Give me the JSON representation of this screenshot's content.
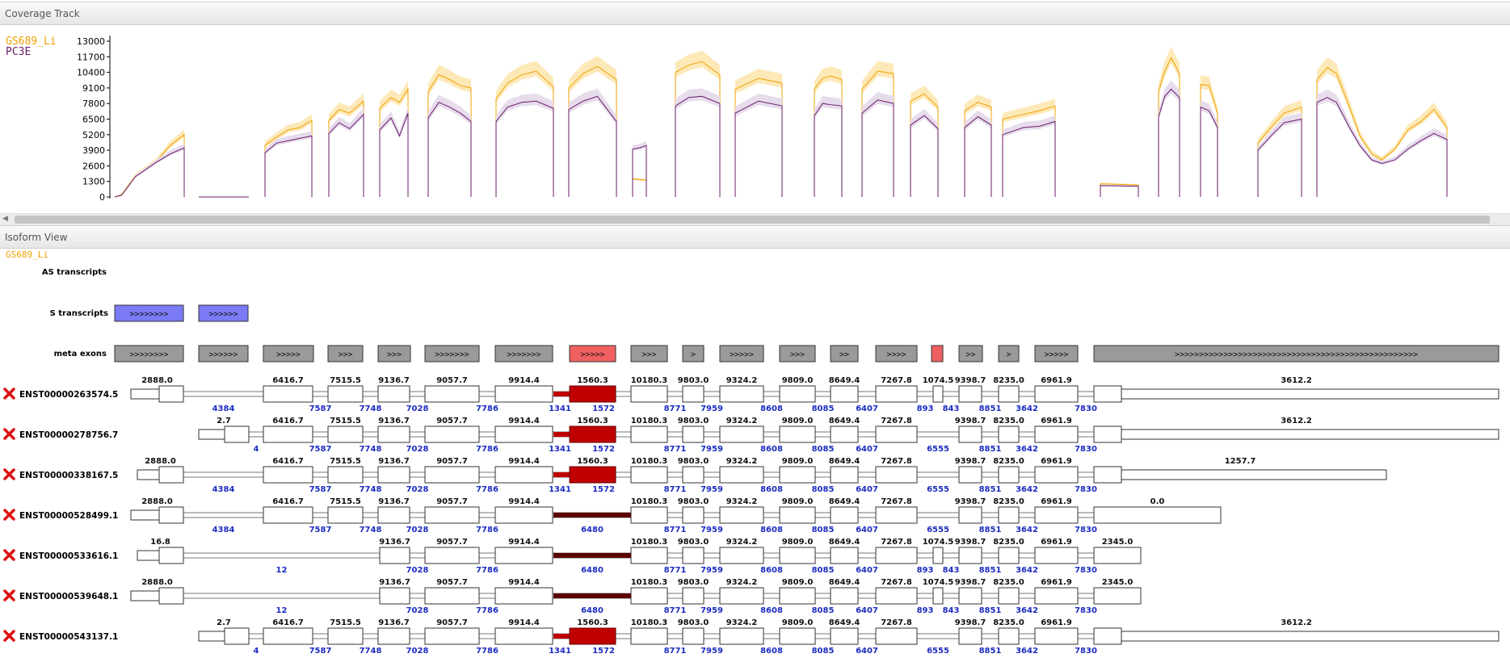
{
  "coverage_track": {
    "title": "Coverage Track",
    "legend": [
      {
        "name": "GS689_Li",
        "color": "#f0a000"
      },
      {
        "name": "PC3E",
        "color": "#6a1b6a"
      }
    ]
  },
  "isoform_view": {
    "title": "Isoform View",
    "sample_label": "GS689_Li",
    "row_labels": {
      "as": "AS transcripts",
      "s": "S transcripts",
      "meta": "meta exons"
    },
    "transcripts": [
      "ENST00000263574.5",
      "ENST00000278756.7",
      "ENST00000338167.5",
      "ENST00000528499.1",
      "ENST00000533616.1",
      "ENST00000539648.1",
      "ENST00000543137.1"
    ],
    "remove_icon": "red-x-icon"
  },
  "chart_data": {
    "type": "line",
    "title": "",
    "xlabel": "",
    "ylabel": "",
    "y_ticks": [
      0,
      1300,
      2600,
      3900,
      5200,
      6500,
      7800,
      9100,
      10400,
      11700,
      13000
    ],
    "ylim": [
      0,
      13500
    ],
    "series": [
      {
        "name": "GS689_Li",
        "color": "#f0a000",
        "band_color": "#fde9b8",
        "segments": [
          [
            [
              0,
              0
            ],
            [
              0.1,
              200
            ],
            [
              0.3,
              1800
            ],
            [
              0.6,
              3000
            ],
            [
              0.8,
              4300
            ],
            [
              1,
              5200
            ]
          ],
          [
            [
              0,
              4300
            ],
            [
              0.25,
              5000
            ],
            [
              0.5,
              5600
            ],
            [
              0.75,
              5800
            ],
            [
              1,
              6400
            ]
          ],
          [
            [
              0,
              6400
            ],
            [
              0.3,
              7300
            ],
            [
              0.6,
              7000
            ],
            [
              1,
              8000
            ]
          ],
          [
            [
              0,
              7400
            ],
            [
              0.4,
              8300
            ],
            [
              0.7,
              7900
            ],
            [
              1,
              9000
            ]
          ],
          [
            [
              0,
              8800
            ],
            [
              0.25,
              10200
            ],
            [
              0.5,
              9800
            ],
            [
              0.75,
              9300
            ],
            [
              1,
              9100
            ]
          ],
          [
            [
              0,
              8200
            ],
            [
              0.2,
              9500
            ],
            [
              0.45,
              10200
            ],
            [
              0.7,
              10500
            ],
            [
              1,
              9200
            ]
          ],
          [
            [
              0,
              9100
            ],
            [
              0.3,
              10300
            ],
            [
              0.6,
              10900
            ],
            [
              1,
              9800
            ]
          ],
          [
            [
              0,
              1500
            ],
            [
              0.5,
              1450
            ],
            [
              1,
              1400
            ]
          ],
          [
            [
              0,
              10400
            ],
            [
              0.3,
              11000
            ],
            [
              0.6,
              11300
            ],
            [
              1,
              10200
            ]
          ],
          [
            [
              0,
              9000
            ],
            [
              0.5,
              9900
            ],
            [
              1,
              9500
            ]
          ],
          [
            [
              0,
              9000
            ],
            [
              0.3,
              9900
            ],
            [
              0.6,
              10100
            ],
            [
              1,
              9800
            ]
          ],
          [
            [
              0,
              9000
            ],
            [
              0.5,
              10500
            ],
            [
              1,
              10300
            ]
          ],
          [
            [
              0,
              8000
            ],
            [
              0.5,
              8600
            ],
            [
              1,
              7500
            ]
          ],
          [
            [
              0,
              7200
            ],
            [
              0.5,
              7900
            ],
            [
              1,
              7500
            ]
          ],
          [
            [
              0,
              6500
            ],
            [
              0.4,
              6900
            ],
            [
              0.7,
              7200
            ],
            [
              1,
              7600
            ]
          ],
          [
            [
              0,
              1100
            ],
            [
              1,
              1000
            ]
          ],
          [
            [
              0,
              8800
            ],
            [
              0.3,
              10500
            ],
            [
              0.6,
              11600
            ],
            [
              1,
              10300
            ]
          ],
          [
            [
              0,
              9400
            ],
            [
              0.5,
              9300
            ],
            [
              1,
              7000
            ]
          ],
          [
            [
              0,
              4500
            ],
            [
              0.3,
              5800
            ],
            [
              0.6,
              7000
            ],
            [
              1,
              7500
            ]
          ],
          [
            [
              0,
              9800
            ],
            [
              0.08,
              10800
            ],
            [
              0.15,
              10300
            ],
            [
              0.25,
              7500
            ],
            [
              0.33,
              5100
            ],
            [
              0.42,
              3600
            ],
            [
              0.5,
              3100
            ],
            [
              0.6,
              4000
            ],
            [
              0.7,
              5600
            ],
            [
              0.8,
              6300
            ],
            [
              0.9,
              7300
            ],
            [
              1,
              5800
            ]
          ]
        ]
      },
      {
        "name": "PC3E",
        "color": "#6a1b6a",
        "band_color": "#e6dcec",
        "segments": [
          [
            [
              0,
              0
            ],
            [
              0.1,
              150
            ],
            [
              0.3,
              1700
            ],
            [
              0.6,
              2900
            ],
            [
              0.8,
              3600
            ],
            [
              1,
              4100
            ]
          ],
          [
            [
              0,
              0
            ],
            [
              1,
              0
            ]
          ],
          [
            [
              0,
              3700
            ],
            [
              0.25,
              4500
            ],
            [
              0.5,
              4700
            ],
            [
              0.75,
              4900
            ],
            [
              1,
              5100
            ]
          ],
          [
            [
              0,
              5300
            ],
            [
              0.3,
              6200
            ],
            [
              0.6,
              5700
            ],
            [
              1,
              6900
            ]
          ],
          [
            [
              0,
              5600
            ],
            [
              0.4,
              6600
            ],
            [
              0.7,
              5100
            ],
            [
              1,
              7000
            ]
          ],
          [
            [
              0,
              6600
            ],
            [
              0.25,
              7900
            ],
            [
              0.5,
              7500
            ],
            [
              0.75,
              7000
            ],
            [
              1,
              6300
            ]
          ],
          [
            [
              0,
              6300
            ],
            [
              0.2,
              7500
            ],
            [
              0.45,
              7900
            ],
            [
              0.7,
              8000
            ],
            [
              1,
              7400
            ]
          ],
          [
            [
              0,
              7300
            ],
            [
              0.3,
              8000
            ],
            [
              0.6,
              8400
            ],
            [
              1,
              6300
            ]
          ],
          [
            [
              0,
              4000
            ],
            [
              0.5,
              4100
            ],
            [
              1,
              4300
            ]
          ],
          [
            [
              0,
              7600
            ],
            [
              0.3,
              8300
            ],
            [
              0.6,
              8400
            ],
            [
              1,
              7800
            ]
          ],
          [
            [
              0,
              7000
            ],
            [
              0.5,
              8000
            ],
            [
              1,
              7600
            ]
          ],
          [
            [
              0,
              6800
            ],
            [
              0.3,
              7800
            ],
            [
              0.6,
              7700
            ],
            [
              1,
              7600
            ]
          ],
          [
            [
              0,
              7000
            ],
            [
              0.5,
              8100
            ],
            [
              1,
              7800
            ]
          ],
          [
            [
              0,
              6000
            ],
            [
              0.5,
              6800
            ],
            [
              1,
              5700
            ]
          ],
          [
            [
              0,
              5800
            ],
            [
              0.5,
              6700
            ],
            [
              1,
              6000
            ]
          ],
          [
            [
              0,
              5200
            ],
            [
              0.4,
              5800
            ],
            [
              0.7,
              5900
            ],
            [
              1,
              6300
            ]
          ],
          [
            [
              0,
              950
            ],
            [
              1,
              900
            ]
          ],
          [
            [
              0,
              6700
            ],
            [
              0.3,
              8400
            ],
            [
              0.6,
              9000
            ],
            [
              1,
              8300
            ]
          ],
          [
            [
              0,
              7500
            ],
            [
              0.5,
              7200
            ],
            [
              1,
              5800
            ]
          ],
          [
            [
              0,
              3900
            ],
            [
              0.3,
              5100
            ],
            [
              0.6,
              6200
            ],
            [
              1,
              6500
            ]
          ],
          [
            [
              0,
              7900
            ],
            [
              0.08,
              8300
            ],
            [
              0.15,
              7900
            ],
            [
              0.25,
              5800
            ],
            [
              0.33,
              4300
            ],
            [
              0.42,
              3100
            ],
            [
              0.5,
              2800
            ],
            [
              0.6,
              3100
            ],
            [
              0.7,
              4000
            ],
            [
              0.8,
              4700
            ],
            [
              0.9,
              5300
            ],
            [
              1,
              4800
            ]
          ]
        ]
      }
    ]
  },
  "exon_labels": {
    "meta_arrows": [
      ">>>>>>>>",
      ">>>>>>",
      ">>>>>",
      ">>>",
      ">>>",
      ">>>>>>>",
      ">>>>>>>",
      ">>>>>",
      ">>>",
      ">",
      ">>>>>",
      ">>>",
      ">>",
      ">>>>",
      "",
      ">>",
      ">",
      ">>>>>",
      ">>>>>>>>>>>>>>>>>>>>>>>>>>>>>>>>>>>>>>>>>>>>>>>>>>"
    ],
    "s_arrows": [
      ">>>>>>>>",
      ">>>>>>"
    ],
    "t1_up": [
      "2888.0",
      "6416.7",
      "7515.5",
      "9136.7",
      "9057.7",
      "9914.4",
      "1560.3",
      "10180.3",
      "9803.0",
      "9324.2",
      "9809.0",
      "8649.4",
      "7267.8",
      "1074.5",
      "9398.7",
      "8235.0",
      "6961.9",
      "3612.2"
    ],
    "t1_dn": [
      "4384",
      "7587",
      "7748",
      "7028",
      "7786",
      "1341",
      "1572",
      "8771",
      "7959",
      "8608",
      "8085",
      "6407",
      "893",
      "843",
      "8851",
      "3642",
      "7830"
    ],
    "t2_up": [
      "2.7",
      "6416.7",
      "7515.5",
      "9136.7",
      "9057.7",
      "9914.4",
      "1560.3",
      "10180.3",
      "9803.0",
      "9324.2",
      "9809.0",
      "8649.4",
      "7267.8",
      "9398.7",
      "8235.0",
      "6961.9",
      "3612.2"
    ],
    "t2_dn": [
      "4",
      "7587",
      "7748",
      "7028",
      "7786",
      "1341",
      "1572",
      "8771",
      "7959",
      "8608",
      "8085",
      "6407",
      "6555",
      "8851",
      "3642",
      "7830"
    ],
    "t3_up": [
      "2888.0",
      "6416.7",
      "7515.5",
      "9136.7",
      "9057.7",
      "9914.4",
      "1560.3",
      "10180.3",
      "9803.0",
      "9324.2",
      "9809.0",
      "8649.4",
      "7267.8",
      "9398.7",
      "8235.0",
      "6961.9",
      "1257.7"
    ],
    "t3_dn": [
      "4384",
      "7587",
      "7748",
      "7028",
      "7786",
      "1341",
      "1572",
      "8771",
      "7959",
      "8608",
      "8085",
      "6407",
      "6555",
      "8851",
      "3642",
      "7830"
    ],
    "t4_up": [
      "2888.0",
      "6416.7",
      "7515.5",
      "9136.7",
      "9057.7",
      "9914.4",
      "10180.3",
      "9803.0",
      "9324.2",
      "9809.0",
      "8649.4",
      "7267.8",
      "9398.7",
      "8235.0",
      "6961.9",
      "0.0"
    ],
    "t4_dn": [
      "4384",
      "7587",
      "7748",
      "7028",
      "7786",
      "6480",
      "8771",
      "7959",
      "8608",
      "8085",
      "6407",
      "6555",
      "8851",
      "3642",
      "7830"
    ],
    "t5_up": [
      "16.8",
      "9136.7",
      "9057.7",
      "9914.4",
      "10180.3",
      "9803.0",
      "9324.2",
      "9809.0",
      "8649.4",
      "7267.8",
      "1074.5",
      "9398.7",
      "8235.0",
      "6961.9",
      "2345.0"
    ],
    "t5_dn": [
      "12",
      "7028",
      "7786",
      "6480",
      "8771",
      "7959",
      "8608",
      "8085",
      "6407",
      "893",
      "843",
      "8851",
      "3642",
      "7830"
    ],
    "t6_up": [
      "2888.0",
      "9136.7",
      "9057.7",
      "9914.4",
      "10180.3",
      "9803.0",
      "9324.2",
      "9809.0",
      "8649.4",
      "7267.8",
      "1074.5",
      "9398.7",
      "8235.0",
      "6961.9",
      "2345.0"
    ],
    "t6_dn": [
      "12",
      "7028",
      "7786",
      "6480",
      "8771",
      "7959",
      "8608",
      "8085",
      "6407",
      "893",
      "843",
      "8851",
      "3642",
      "7830"
    ],
    "t7_up": [
      "2.7",
      "6416.7",
      "7515.5",
      "9136.7",
      "9057.7",
      "9914.4",
      "1560.3",
      "10180.3",
      "9803.0",
      "9324.2",
      "9809.0",
      "8649.4",
      "7267.8",
      "9398.7",
      "8235.0",
      "6961.9",
      "3612.2"
    ],
    "t7_dn": [
      "4",
      "7587",
      "7748",
      "7028",
      "7786",
      "1341",
      "1572",
      "8771",
      "7959",
      "8608",
      "8085",
      "6407",
      "6555",
      "8851",
      "3642",
      "7830"
    ]
  }
}
